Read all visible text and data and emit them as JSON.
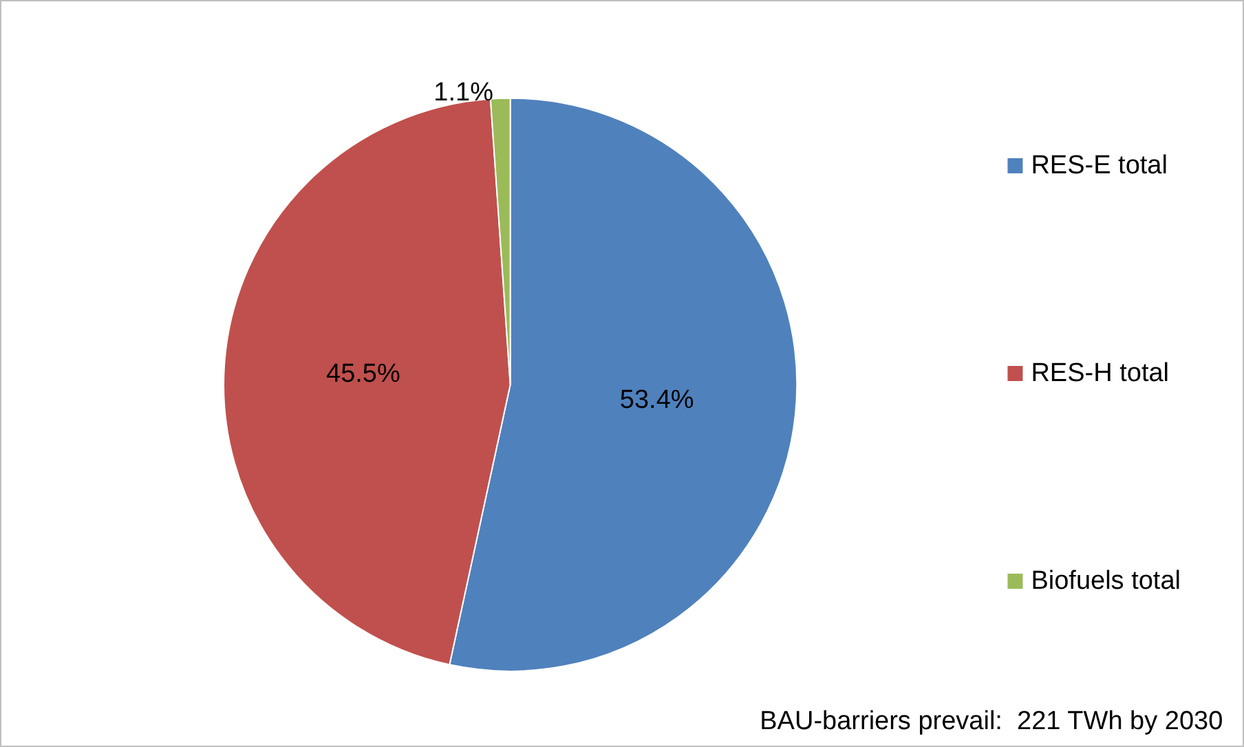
{
  "chart_data": {
    "type": "pie",
    "categories": [
      "RES-E total",
      "RES-H total",
      "Biofuels total"
    ],
    "values": [
      53.4,
      45.5,
      1.1
    ],
    "colors": [
      "#4f81bd",
      "#c0504d",
      "#9bbb59"
    ],
    "value_labels": [
      "53.4%",
      "45.5%",
      "1.1%"
    ],
    "legend": "right",
    "annotations": [
      "BAU-barriers prevail:  221 TWh by 2030"
    ]
  }
}
